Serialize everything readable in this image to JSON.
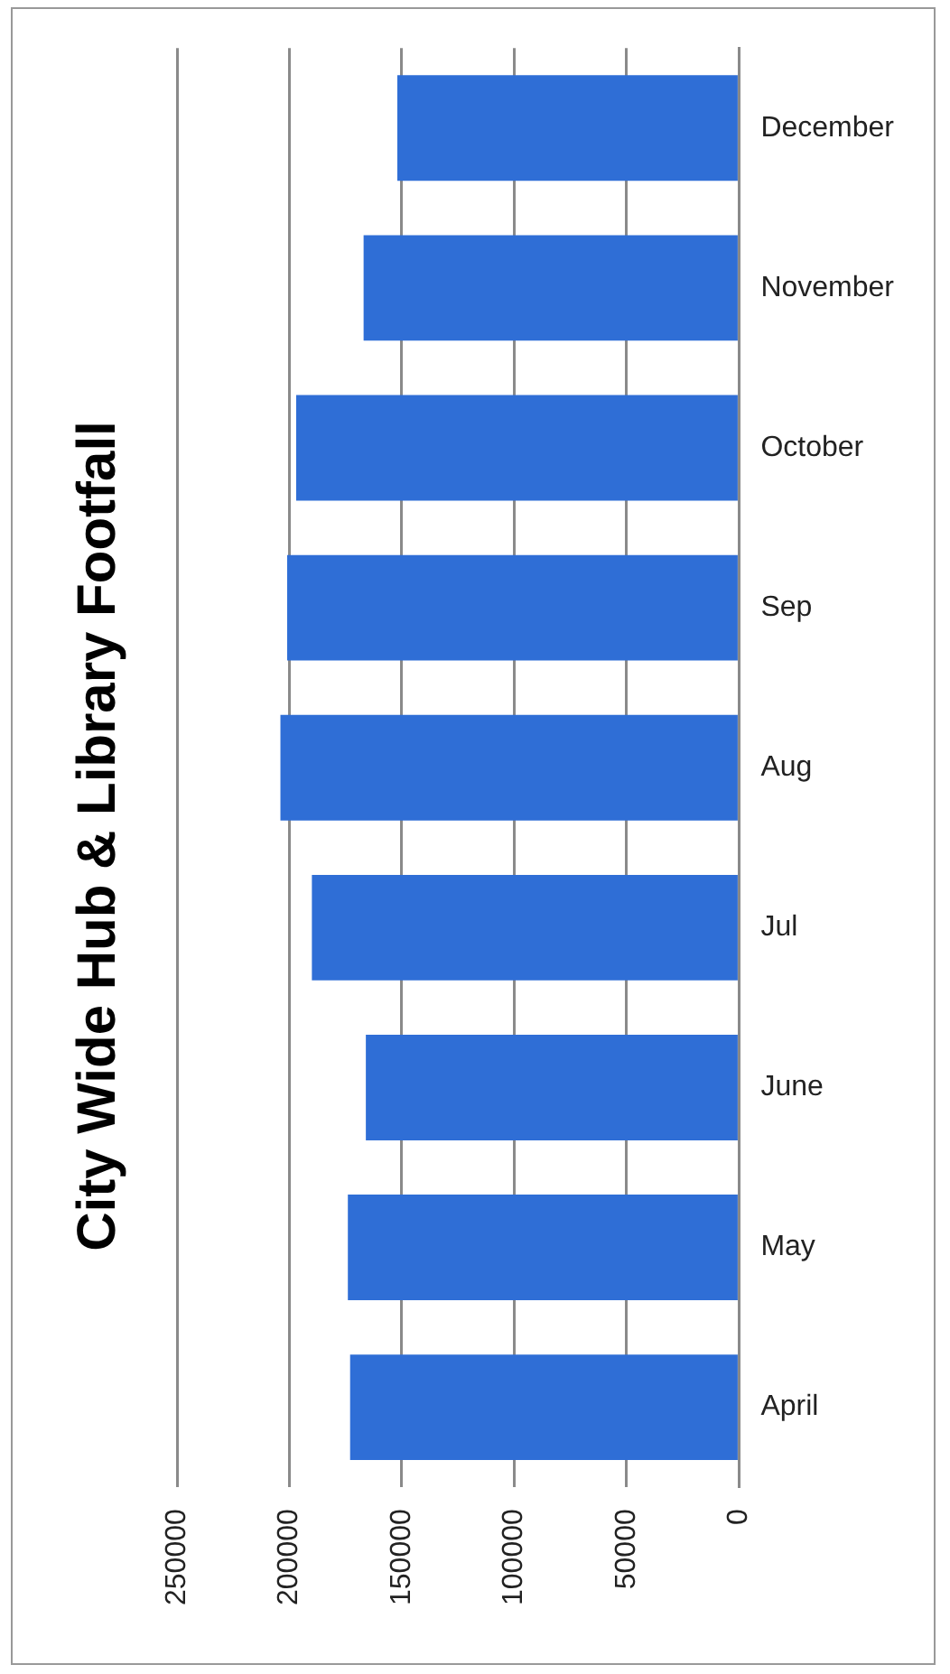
{
  "chart_data": {
    "type": "bar",
    "title": "City Wide Hub & Library Footfall",
    "orientation": "horizontal",
    "categories": [
      "December",
      "November",
      "October",
      "Sep",
      "Aug",
      "Jul",
      "June",
      "May",
      "April"
    ],
    "values": [
      152000,
      167000,
      197000,
      201000,
      204000,
      190000,
      166000,
      174000,
      173000
    ],
    "color": "#2f6ed6",
    "xlim": [
      250000,
      0
    ],
    "xticks": [
      250000,
      200000,
      150000,
      100000,
      50000,
      0
    ],
    "grid": "x"
  }
}
